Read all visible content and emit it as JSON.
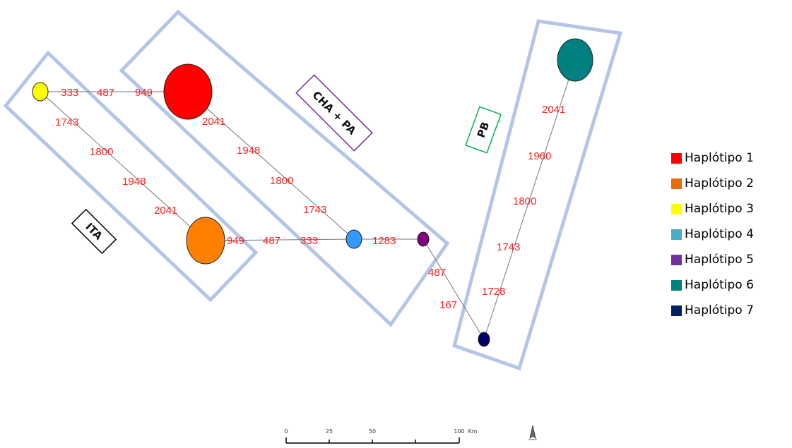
{
  "regions": [
    {
      "id": "ita",
      "label": "ITA",
      "border_color": "#000000"
    },
    {
      "id": "cha_pa",
      "label": "CHA + PA",
      "border_color": "#7030a0"
    },
    {
      "id": "pb",
      "label": "PB",
      "border_color": "#00b050"
    }
  ],
  "haplotypes": [
    {
      "id": "H1",
      "color": "#ff0000"
    },
    {
      "id": "H2",
      "color": "#ff7f00"
    },
    {
      "id": "H3",
      "color": "#ffff00"
    },
    {
      "id": "H4",
      "color": "#3399ff"
    },
    {
      "id": "H5",
      "color": "#800080"
    },
    {
      "id": "H6",
      "color": "#008080"
    },
    {
      "id": "H7",
      "color": "#000066"
    }
  ],
  "mutations": {
    "h3_h1": [
      "333",
      "487",
      "949"
    ],
    "h3_h2": [
      "1743",
      "1800",
      "1948",
      "2041"
    ],
    "h1_h4": [
      "2041",
      "1948",
      "1800",
      "1743"
    ],
    "h2_h4": [
      "949",
      "487",
      "333"
    ],
    "h4_h5": [
      "1283"
    ],
    "h5_h7": [
      "487",
      "167"
    ],
    "h7_h6": [
      "1728",
      "1743",
      "1800",
      "1960",
      "2041"
    ]
  },
  "legend": [
    {
      "label": "Haplótipo 1",
      "color": "#ff0000"
    },
    {
      "label": "Haplótipo 2",
      "color": "#e46c0a"
    },
    {
      "label": "Haplótipo 3",
      "color": "#ffff00"
    },
    {
      "label": "Haplótipo 4",
      "color": "#4bacc6"
    },
    {
      "label": "Haplótipo 5",
      "color": "#7030a0"
    },
    {
      "label": "Haplótipo 6",
      "color": "#008080"
    },
    {
      "label": "Haplótipo 7",
      "color": "#002060"
    }
  ],
  "scale_bar": {
    "ticks": [
      "0",
      "25",
      "50",
      "100"
    ],
    "unit": "Km"
  }
}
